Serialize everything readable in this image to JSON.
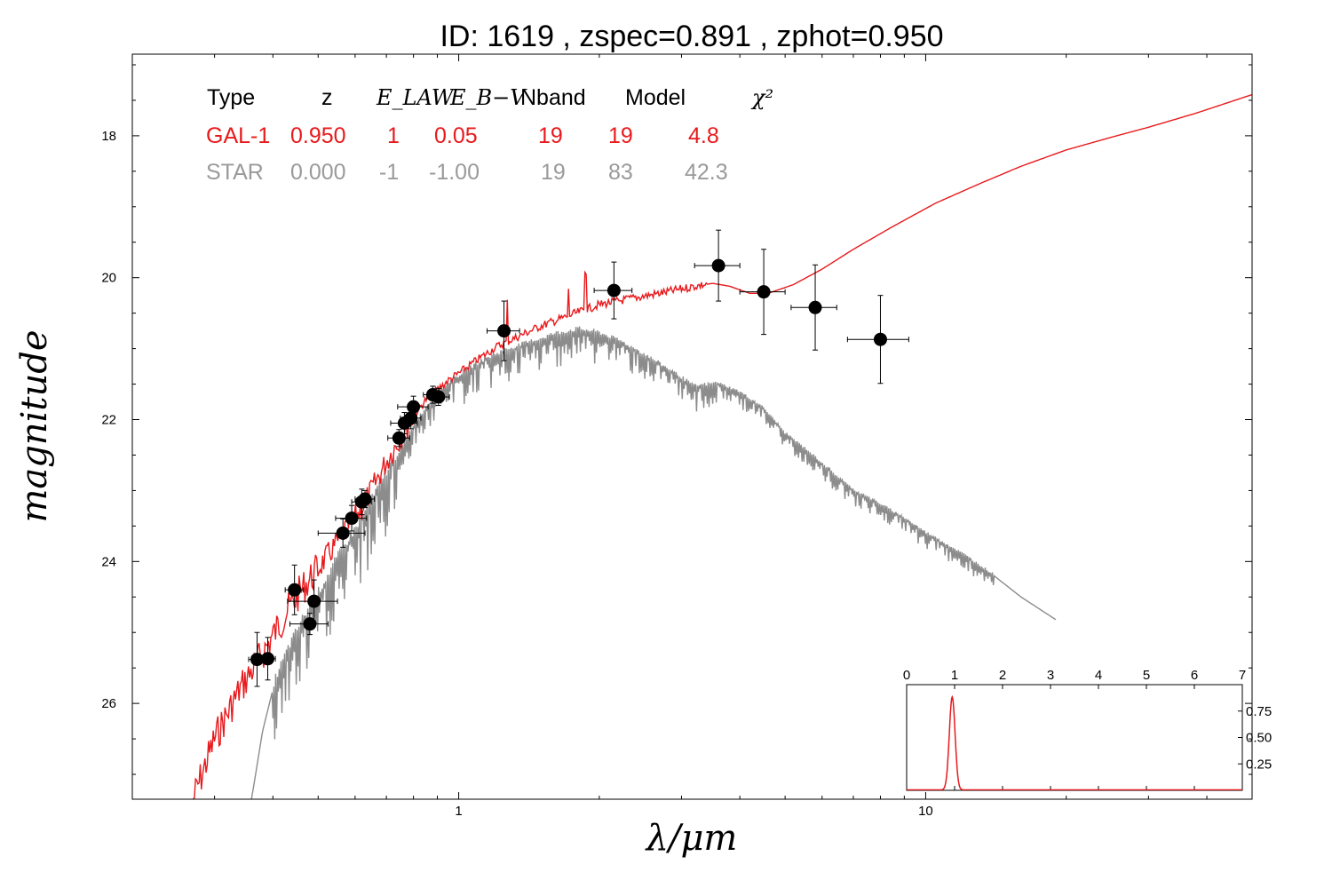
{
  "title": "ID:  1619  , zspec=0.891 , zphot=0.950",
  "chart_data": {
    "type": "scatter",
    "title": "ID:  1619  , zspec=0.891 , zphot=0.950",
    "xlabel": "λ/μm",
    "ylabel": "magnitude",
    "x_scale": "log",
    "xlim": [
      0.2,
      50
    ],
    "ylim": [
      27.35,
      16.85
    ],
    "y_inverted": true,
    "x_ticks": [
      {
        "value": 1,
        "label": "1"
      },
      {
        "value": 10,
        "label": "10"
      }
    ],
    "y_ticks": [
      {
        "value": 18,
        "label": "18"
      },
      {
        "value": 20,
        "label": "20"
      },
      {
        "value": 22,
        "label": "22"
      },
      {
        "value": 24,
        "label": "24"
      },
      {
        "value": 26,
        "label": "26"
      }
    ],
    "fit_table": {
      "headers": [
        "Type",
        "z",
        "E_LAW",
        "E_B−V",
        "Nband",
        "Model",
        "χ²"
      ],
      "rows": [
        {
          "cells": [
            "GAL-1",
            "0.950",
            "1",
            "0.05",
            "19",
            "19",
            "4.8"
          ],
          "color": "#e8191c"
        },
        {
          "cells": [
            "STAR",
            "0.000",
            "-1",
            "-1.00",
            "19",
            "83",
            "42.3"
          ],
          "color": "#9a9a9a"
        }
      ]
    },
    "points": [
      {
        "x": 0.37,
        "y": 25.38,
        "xerr": 0.015,
        "yerr": 0.38
      },
      {
        "x": 0.39,
        "y": 25.37,
        "xerr": 0.015,
        "yerr": 0.3
      },
      {
        "x": 0.445,
        "y": 24.4,
        "xerr": 0.02,
        "yerr": 0.35
      },
      {
        "x": 0.48,
        "y": 24.88,
        "xerr": 0.045,
        "yerr": 0.15
      },
      {
        "x": 0.49,
        "y": 24.56,
        "xerr": 0.06,
        "yerr": 0.3
      },
      {
        "x": 0.565,
        "y": 23.6,
        "xerr": 0.065,
        "yerr": 0.2
      },
      {
        "x": 0.59,
        "y": 23.39,
        "xerr": 0.045,
        "yerr": 0.18
      },
      {
        "x": 0.62,
        "y": 23.16,
        "xerr": 0.03,
        "yerr": 0.18
      },
      {
        "x": 0.63,
        "y": 23.12,
        "xerr": 0.03,
        "yerr": 0.12
      },
      {
        "x": 0.745,
        "y": 22.26,
        "xerr": 0.04,
        "yerr": 0.12
      },
      {
        "x": 0.765,
        "y": 22.05,
        "xerr": 0.05,
        "yerr": 0.15
      },
      {
        "x": 0.79,
        "y": 21.98,
        "xerr": 0.04,
        "yerr": 0.15
      },
      {
        "x": 0.8,
        "y": 21.82,
        "xerr": 0.06,
        "yerr": 0.15
      },
      {
        "x": 0.88,
        "y": 21.65,
        "xerr": 0.04,
        "yerr": 0.12
      },
      {
        "x": 0.905,
        "y": 21.68,
        "xerr": 0.05,
        "yerr": 0.12
      },
      {
        "x": 1.25,
        "y": 20.75,
        "xerr": 0.1,
        "yerr": 0.42
      },
      {
        "x": 2.15,
        "y": 20.18,
        "xerr": 0.2,
        "yerr": 0.4
      },
      {
        "x": 3.6,
        "y": 19.83,
        "xerr": 0.4,
        "yerr": 0.5
      },
      {
        "x": 4.5,
        "y": 20.2,
        "xerr": 0.5,
        "yerr": 0.6
      },
      {
        "x": 5.8,
        "y": 20.42,
        "xerr": 0.65,
        "yerr": 0.6
      },
      {
        "x": 8.0,
        "y": 20.87,
        "xerr": 1.2,
        "yerr": 0.62
      }
    ],
    "series": [
      {
        "kind": "galaxy-model",
        "color": "#e8191c",
        "points": [
          [
            0.27,
            27.35
          ],
          [
            0.3,
            26.5
          ],
          [
            0.34,
            25.8
          ],
          [
            0.38,
            25.3
          ],
          [
            0.42,
            24.8
          ],
          [
            0.46,
            24.4
          ],
          [
            0.5,
            24.1
          ],
          [
            0.54,
            23.8
          ],
          [
            0.58,
            23.5
          ],
          [
            0.62,
            23.25
          ],
          [
            0.65,
            23.0
          ],
          [
            0.68,
            22.75
          ],
          [
            0.72,
            22.45
          ],
          [
            0.76,
            22.2
          ],
          [
            0.8,
            21.95
          ],
          [
            0.85,
            21.72
          ],
          [
            0.9,
            21.58
          ],
          [
            0.95,
            21.45
          ],
          [
            1.0,
            21.35
          ],
          [
            1.1,
            21.15
          ],
          [
            1.2,
            20.98
          ],
          [
            1.35,
            20.82
          ],
          [
            1.5,
            20.68
          ],
          [
            1.7,
            20.55
          ],
          [
            2.0,
            20.38
          ],
          [
            2.4,
            20.28
          ],
          [
            2.8,
            20.2
          ],
          [
            3.2,
            20.12
          ],
          [
            3.5,
            20.08
          ],
          [
            3.8,
            20.12
          ],
          [
            4.2,
            20.22
          ],
          [
            4.6,
            20.22
          ],
          [
            5.2,
            20.1
          ],
          [
            6.0,
            19.88
          ],
          [
            7.0,
            19.6
          ],
          [
            8.5,
            19.28
          ],
          [
            10.5,
            18.95
          ],
          [
            13.0,
            18.68
          ],
          [
            16.0,
            18.43
          ],
          [
            20.0,
            18.2
          ],
          [
            25.0,
            18.02
          ],
          [
            30.0,
            17.88
          ],
          [
            38.0,
            17.68
          ],
          [
            50.0,
            17.42
          ]
        ]
      },
      {
        "kind": "star-model",
        "color": "#8c8c8c",
        "points": [
          [
            0.36,
            27.35
          ],
          [
            0.38,
            26.4
          ],
          [
            0.4,
            25.8
          ],
          [
            0.43,
            25.3
          ],
          [
            0.46,
            24.9
          ],
          [
            0.5,
            24.5
          ],
          [
            0.55,
            24.0
          ],
          [
            0.6,
            23.6
          ],
          [
            0.65,
            23.2
          ],
          [
            0.7,
            22.8
          ],
          [
            0.75,
            22.45
          ],
          [
            0.8,
            22.1
          ],
          [
            0.85,
            21.85
          ],
          [
            0.9,
            21.65
          ],
          [
            0.95,
            21.5
          ],
          [
            1.0,
            21.4
          ],
          [
            1.1,
            21.22
          ],
          [
            1.25,
            21.05
          ],
          [
            1.4,
            20.95
          ],
          [
            1.6,
            20.82
          ],
          [
            1.8,
            20.75
          ],
          [
            2.0,
            20.8
          ],
          [
            2.2,
            20.9
          ],
          [
            2.5,
            21.1
          ],
          [
            2.8,
            21.3
          ],
          [
            3.2,
            21.55
          ],
          [
            3.6,
            21.5
          ],
          [
            4.0,
            21.62
          ],
          [
            4.5,
            21.85
          ],
          [
            5.0,
            22.2
          ],
          [
            5.6,
            22.45
          ],
          [
            6.3,
            22.75
          ],
          [
            7.0,
            23.0
          ],
          [
            8.0,
            23.2
          ],
          [
            9.0,
            23.4
          ],
          [
            10.0,
            23.6
          ],
          [
            12.0,
            23.9
          ],
          [
            14.0,
            24.2
          ],
          [
            16.0,
            24.5
          ],
          [
            19.0,
            24.82
          ]
        ]
      }
    ],
    "inset": {
      "type": "line",
      "xlim": [
        0,
        7
      ],
      "ylim": [
        0,
        1
      ],
      "x_ticks": [
        "0",
        "1",
        "2",
        "3",
        "4",
        "5",
        "6",
        "7"
      ],
      "y_ticks": [
        "0.25",
        "0.50",
        "0.75"
      ],
      "y_tick_values": [
        0.25,
        0.5,
        0.75
      ],
      "peak_x": 0.95,
      "peak_y": 0.88,
      "sigma": 0.06,
      "color": "#e8191c"
    }
  }
}
